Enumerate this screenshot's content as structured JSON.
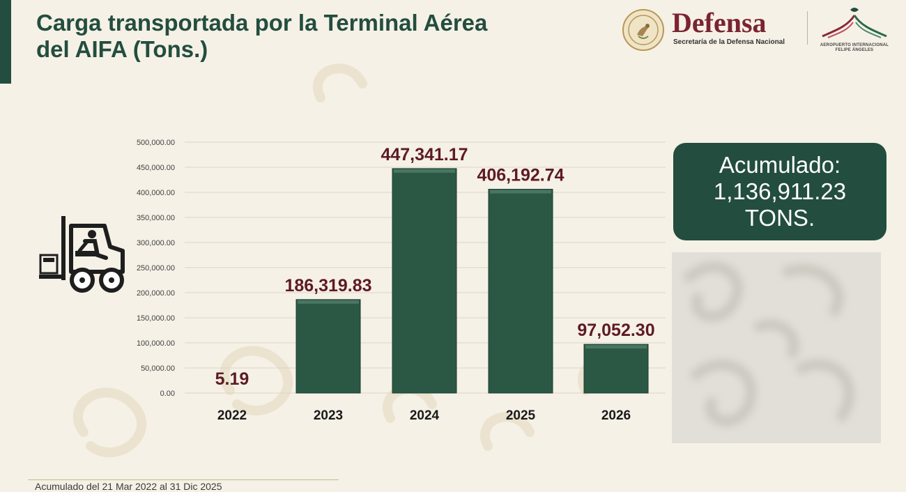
{
  "title": {
    "line1": "Carga transportada por la Terminal Aérea",
    "line2": "del AIFA (Tons.)"
  },
  "logos": {
    "defensa": "Defensa",
    "defensa_subtitle": "Secretaría de la Defensa Nacional",
    "aifa_line1": "AEROPUERTO INTERNACIONAL",
    "aifa_line2": "FELIPE ÁNGELES"
  },
  "colors": {
    "brand_green": "#234d3f",
    "bar_green": "#2a5844",
    "label_maroon": "#5e1a24",
    "accent_maroon": "#7a2432"
  },
  "icons": [
    "forklift-icon",
    "national-seal-icon",
    "aifa-logo-icon"
  ],
  "summary": {
    "line1": "Acumulado:",
    "line2": "1,136,911.23",
    "line3": "TONS."
  },
  "footnote": "Acumulado del 21 Mar 2022 al 31 Dic 2025",
  "chart_data": {
    "type": "bar",
    "categories": [
      "2022",
      "2023",
      "2024",
      "2025",
      "2026"
    ],
    "values": [
      5.19,
      186319.83,
      447341.17,
      406192.74,
      97052.3
    ],
    "data_labels": [
      "5.19",
      "186,319.83",
      "447,341.17",
      "406,192.74",
      "97,052.30"
    ],
    "title": "Carga transportada por la Terminal Aérea del AIFA (Tons.)",
    "ylim": [
      0,
      500000
    ],
    "yticks": [
      0,
      50000,
      100000,
      150000,
      200000,
      250000,
      300000,
      350000,
      400000,
      450000,
      500000
    ],
    "ytick_labels": [
      "0.00",
      "50,000.00",
      "100,000.00",
      "150,000.00",
      "200,000.00",
      "250,000.00",
      "300,000.00",
      "350,000.00",
      "400,000.00",
      "450,000.00",
      "500,000.00"
    ],
    "grid": true,
    "legend": "none"
  }
}
